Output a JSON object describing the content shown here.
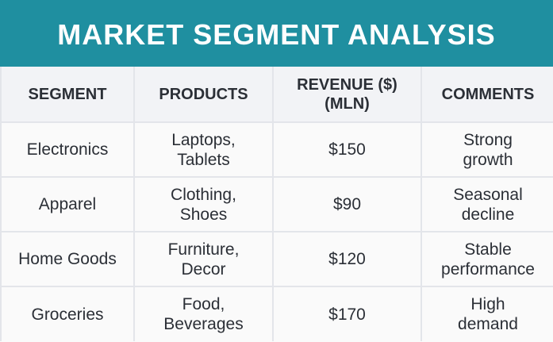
{
  "title": "MARKET SEGMENT ANALYSIS",
  "colors": {
    "title_bar": "#1f8fa0",
    "title_text": "#ffffff",
    "header_bg": "#f2f3f6",
    "row_bg": "#fafafa",
    "grid": "#e3e5ea",
    "text": "#2b2f36"
  },
  "table": {
    "headers": [
      {
        "line1": "SEGMENT",
        "line2": ""
      },
      {
        "line1": "PRODUCTS",
        "line2": ""
      },
      {
        "line1": "REVENUE ($)",
        "line2": "(MLN)"
      },
      {
        "line1": "COMMENTS",
        "line2": ""
      }
    ],
    "rows": [
      {
        "segment": "Electronics",
        "products": {
          "line1": "Laptops,",
          "line2": "Tablets"
        },
        "revenue": "$150",
        "comments": {
          "line1": "Strong",
          "line2": "growth"
        }
      },
      {
        "segment": "Apparel",
        "products": {
          "line1": "Clothing,",
          "line2": "Shoes"
        },
        "revenue": "$90",
        "comments": {
          "line1": "Seasonal",
          "line2": "decline"
        }
      },
      {
        "segment": "Home Goods",
        "products": {
          "line1": "Furniture,",
          "line2": "Decor"
        },
        "revenue": "$120",
        "comments": {
          "line1": "Stable",
          "line2": "performance"
        }
      },
      {
        "segment": "Groceries",
        "products": {
          "line1": "Food,",
          "line2": "Beverages"
        },
        "revenue": "$170",
        "comments": {
          "line1": "High",
          "line2": "demand"
        }
      }
    ]
  }
}
